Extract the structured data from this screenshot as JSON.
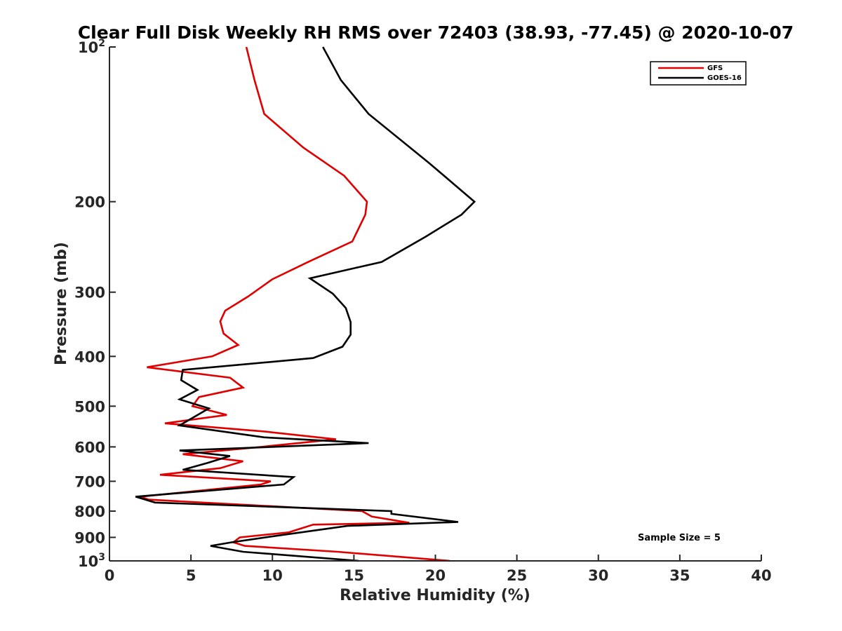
{
  "chart_data": {
    "type": "line",
    "title": "Clear Full Disk Weekly RH RMS over 72403 (38.93, -77.45) @ 2020-10-07",
    "xlabel": "Relative Humidity (%)",
    "ylabel": "Pressure (mb)",
    "xlim": [
      0,
      40
    ],
    "ylim": [
      100,
      1000
    ],
    "yscale": "log",
    "y_reversed": true,
    "grid": false,
    "legend_position": "top-right",
    "xticks": [
      0,
      5,
      10,
      15,
      20,
      25,
      30,
      35,
      40
    ],
    "xtick_labels": [
      "0",
      "5",
      "10",
      "15",
      "20",
      "25",
      "30",
      "35",
      "40"
    ],
    "yticks": [
      {
        "value": 100,
        "base": "10",
        "exp": "2"
      },
      {
        "value": 200,
        "base": "200",
        "exp": ""
      },
      {
        "value": 300,
        "base": "300",
        "exp": ""
      },
      {
        "value": 400,
        "base": "400",
        "exp": ""
      },
      {
        "value": 500,
        "base": "500",
        "exp": ""
      },
      {
        "value": 600,
        "base": "600",
        "exp": ""
      },
      {
        "value": 700,
        "base": "700",
        "exp": ""
      },
      {
        "value": 800,
        "base": "800",
        "exp": ""
      },
      {
        "value": 900,
        "base": "900",
        "exp": ""
      },
      {
        "value": 1000,
        "base": "10",
        "exp": "3"
      }
    ],
    "annotation": "Sample Size = 5",
    "series": [
      {
        "name": "GFS",
        "color": "#e00000",
        "x": [
          8.4,
          8.9,
          9.5,
          11.9,
          14.4,
          15.8,
          15.7,
          14.9,
          12.2,
          10.0,
          8.5,
          7.1,
          6.8,
          7.0,
          7.9,
          6.3,
          2.3,
          7.4,
          8.2,
          5.5,
          5.1,
          7.2,
          3.4,
          9.5,
          13.9,
          9.3,
          4.5,
          8.2,
          6.8,
          3.1,
          9.9,
          9.3,
          1.9,
          2.4,
          15.5,
          16.1,
          18.4,
          12.5,
          11.0,
          8.0,
          7.6,
          8.3,
          14.0,
          20.9
        ],
        "y": [
          100,
          116,
          135,
          157,
          178,
          200,
          212,
          239,
          262,
          283,
          306,
          326,
          342,
          361,
          380,
          400,
          420,
          440,
          460,
          480,
          500,
          520,
          540,
          560,
          580,
          600,
          620,
          640,
          660,
          680,
          700,
          710,
          750,
          760,
          800,
          820,
          843,
          850,
          880,
          900,
          920,
          935,
          960,
          1000
        ]
      },
      {
        "name": "GOES-16",
        "color": "#000000",
        "x": [
          13.1,
          14.2,
          15.9,
          19.6,
          22.4,
          21.6,
          19.4,
          16.7,
          12.3,
          13.7,
          14.5,
          14.8,
          14.8,
          14.3,
          12.5,
          4.5,
          4.4,
          5.4,
          4.3,
          6.1,
          4.3,
          9.5,
          15.9,
          4.3,
          7.4,
          6.0,
          4.5,
          11.3,
          10.7,
          1.6,
          2.8,
          17.3,
          17.3,
          21.4,
          14.6,
          10.1,
          7.5,
          6.2,
          8.2,
          15.3
        ],
        "y": [
          100,
          116,
          135,
          168,
          200,
          212,
          234,
          262,
          282,
          302,
          322,
          343,
          363,
          383,
          403,
          425,
          445,
          465,
          485,
          505,
          545,
          575,
          590,
          610,
          625,
          645,
          665,
          687,
          710,
          750,
          770,
          800,
          810,
          840,
          855,
          895,
          920,
          935,
          960,
          1000
        ]
      }
    ]
  }
}
